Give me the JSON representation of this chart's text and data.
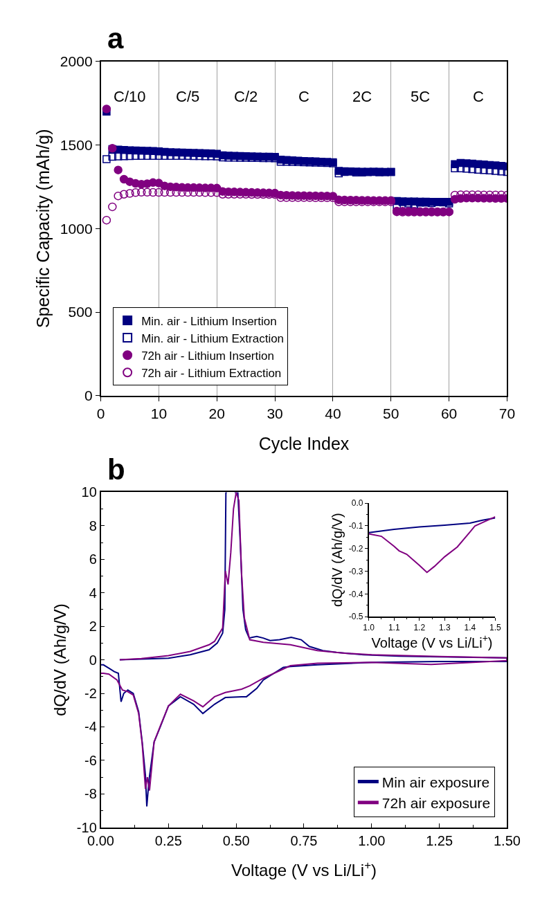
{
  "chart_data": [
    {
      "type": "scatter",
      "title": "a",
      "xlabel": "Cycle Index",
      "ylabel": "Specific Capacity (mAh/g)",
      "x": [
        1,
        2,
        3,
        4,
        5,
        6,
        7,
        8,
        9,
        10,
        11,
        12,
        13,
        14,
        15,
        16,
        17,
        18,
        19,
        20,
        21,
        22,
        23,
        24,
        25,
        26,
        27,
        28,
        29,
        30,
        31,
        32,
        33,
        34,
        35,
        36,
        37,
        38,
        39,
        40,
        41,
        42,
        43,
        44,
        45,
        46,
        47,
        48,
        49,
        50,
        51,
        52,
        53,
        54,
        55,
        56,
        57,
        58,
        59,
        60,
        61,
        62,
        63,
        64,
        65,
        66,
        67,
        68,
        69,
        70
      ],
      "series": [
        {
          "name": "Min. air - Lithium Insertion",
          "color": "#000080",
          "marker": "square",
          "values": [
            1700,
            1475,
            1472,
            1470,
            1468,
            1467,
            1466,
            1465,
            1464,
            1462,
            1458,
            1456,
            1455,
            1454,
            1453,
            1452,
            1451,
            1450,
            1449,
            1447,
            1438,
            1436,
            1435,
            1434,
            1433,
            1432,
            1431,
            1430,
            1429,
            1428,
            1412,
            1410,
            1408,
            1406,
            1404,
            1403,
            1402,
            1400,
            1398,
            1396,
            1345,
            1343,
            1342,
            1341,
            1340,
            1340,
            1339,
            1339,
            1338,
            1338,
            1165,
            1163,
            1162,
            1162,
            1161,
            1161,
            1160,
            1160,
            1160,
            1160,
            1385,
            1392,
            1390,
            1388,
            1385,
            1383,
            1380,
            1378,
            1375,
            1372
          ]
        },
        {
          "name": "Min. air - Lithium Extraction",
          "color": "#000080",
          "marker": "square-open",
          "values": [
            1415,
            1430,
            1432,
            1433,
            1434,
            1435,
            1435,
            1435,
            1435,
            1435,
            1435,
            1435,
            1435,
            1435,
            1435,
            1434,
            1434,
            1433,
            1433,
            1432,
            1425,
            1424,
            1424,
            1423,
            1423,
            1422,
            1422,
            1421,
            1421,
            1420,
            1400,
            1399,
            1398,
            1397,
            1396,
            1395,
            1394,
            1393,
            1392,
            1390,
            1330,
            1338,
            1342,
            1335,
            1335,
            1337,
            1338,
            1336,
            1337,
            1338,
            1140,
            1158,
            1150,
            1145,
            1155,
            1155,
            1152,
            1158,
            1156,
            1150,
            1360,
            1360,
            1358,
            1355,
            1352,
            1350,
            1348,
            1345,
            1342,
            1338
          ]
        },
        {
          "name": "72h air - Lithium Insertion",
          "color": "#800080",
          "marker": "circle",
          "values": [
            1715,
            1480,
            1350,
            1295,
            1280,
            1270,
            1265,
            1268,
            1275,
            1272,
            1255,
            1250,
            1248,
            1246,
            1245,
            1245,
            1244,
            1243,
            1243,
            1242,
            1222,
            1220,
            1219,
            1218,
            1217,
            1216,
            1215,
            1214,
            1213,
            1212,
            1200,
            1199,
            1198,
            1197,
            1197,
            1196,
            1196,
            1195,
            1195,
            1194,
            1172,
            1171,
            1170,
            1170,
            1169,
            1169,
            1168,
            1168,
            1168,
            1168,
            1105,
            1104,
            1103,
            1103,
            1102,
            1102,
            1102,
            1101,
            1101,
            1100,
            1175,
            1180,
            1182,
            1182,
            1182,
            1181,
            1181,
            1180,
            1180,
            1180
          ]
        },
        {
          "name": "72h air - Lithium Extraction",
          "color": "#800080",
          "marker": "circle-open",
          "values": [
            1050,
            1130,
            1195,
            1205,
            1210,
            1215,
            1217,
            1217,
            1216,
            1216,
            1216,
            1216,
            1216,
            1216,
            1216,
            1216,
            1216,
            1215,
            1215,
            1215,
            1205,
            1205,
            1205,
            1205,
            1205,
            1204,
            1204,
            1204,
            1204,
            1204,
            1185,
            1185,
            1185,
            1185,
            1185,
            1185,
            1184,
            1184,
            1184,
            1184,
            1160,
            1160,
            1160,
            1160,
            1160,
            1160,
            1160,
            1160,
            1160,
            1160,
            1100,
            1098,
            1098,
            1098,
            1098,
            1098,
            1098,
            1098,
            1098,
            1100,
            1200,
            1202,
            1202,
            1202,
            1202,
            1201,
            1201,
            1201,
            1201,
            1200
          ]
        }
      ],
      "annotations": [
        "C/10",
        "C/5",
        "C/2",
        "C",
        "2C",
        "5C",
        "C"
      ],
      "xlim": [
        0,
        70
      ],
      "xticks": [
        0,
        10,
        20,
        30,
        40,
        50,
        60,
        70
      ],
      "ylim": [
        0,
        2000
      ],
      "yticks": [
        0,
        500,
        1000,
        1500,
        2000
      ],
      "grid": "x",
      "legend": "bottom left"
    },
    {
      "type": "line",
      "title": "b",
      "xlabel": "Voltage (V vs Li/Li$^{+}$)",
      "ylabel": "dQ/dV (Ah/g/V)",
      "series": [
        {
          "name": "Min air exposure",
          "color": "#000080",
          "x": [
            0.07,
            0.15,
            0.25,
            0.33,
            0.4,
            0.43,
            0.45,
            0.458,
            0.462,
            0.466,
            0.48,
            0.494,
            0.5,
            0.506,
            0.515,
            0.525,
            0.535,
            0.548,
            0.56,
            0.576,
            0.6,
            0.625,
            0.66,
            0.703,
            0.74,
            0.77,
            0.82,
            0.87,
            0.97,
            1.1,
            1.25,
            1.5,
            1.5,
            1.25,
            1.0,
            0.8,
            0.7,
            0.674,
            0.6,
            0.576,
            0.538,
            0.52,
            0.46,
            0.42,
            0.377,
            0.343,
            0.294,
            0.25,
            0.221,
            0.197,
            0.178,
            0.17,
            0.165,
            0.153,
            0.14,
            0.12,
            0.1,
            0.085,
            0.075,
            0.065,
            0.05,
            0.03,
            0.01,
            0.0
          ],
          "values": [
            0.0,
            0.05,
            0.1,
            0.3,
            0.6,
            1.0,
            1.6,
            3.0,
            10,
            10,
            null,
            10,
            10,
            10,
            7.0,
            3.0,
            1.8,
            1.3,
            1.35,
            1.4,
            1.3,
            1.15,
            1.2,
            1.35,
            1.2,
            0.8,
            0.55,
            0.45,
            0.3,
            0.22,
            0.18,
            0.12,
            -0.1,
            -0.1,
            -0.15,
            -0.3,
            -0.4,
            -0.45,
            -1.2,
            -1.7,
            -2.2,
            -2.2,
            -2.25,
            -2.65,
            -3.2,
            -2.65,
            -2.2,
            -2.75,
            -3.95,
            -4.9,
            -7.2,
            -8.75,
            -6.9,
            -4.9,
            -3.1,
            -2.0,
            -1.8,
            -2.0,
            -2.5,
            -0.8,
            -0.7,
            -0.5,
            -0.3,
            -0.3
          ]
        },
        {
          "name": "72h air exposure",
          "color": "#800080",
          "x": [
            0.07,
            0.15,
            0.25,
            0.33,
            0.4,
            0.42,
            0.45,
            0.46,
            0.47,
            0.48,
            0.49,
            0.5,
            0.51,
            0.52,
            0.53,
            0.55,
            0.6,
            0.7,
            0.8,
            0.9,
            1.0,
            1.25,
            1.5,
            1.5,
            1.22,
            1.0,
            0.8,
            0.7,
            0.6,
            0.55,
            0.52,
            0.46,
            0.42,
            0.377,
            0.343,
            0.294,
            0.25,
            0.221,
            0.197,
            0.18,
            0.172,
            0.165,
            0.153,
            0.14,
            0.12,
            0.1,
            0.08,
            0.06,
            0.03,
            0.01,
            0.0
          ],
          "values": [
            0.0,
            0.08,
            0.25,
            0.5,
            0.9,
            1.1,
            1.9,
            5.3,
            4.5,
            6.4,
            9.0,
            10,
            9.5,
            5.1,
            2.5,
            1.2,
            1.05,
            0.9,
            0.55,
            0.4,
            0.3,
            0.2,
            0.12,
            -0.05,
            -0.27,
            -0.15,
            -0.2,
            -0.35,
            -1.1,
            -1.55,
            -1.75,
            -1.95,
            -2.2,
            -2.8,
            -2.45,
            -2.05,
            -2.75,
            -3.9,
            -4.9,
            -7.8,
            -7.0,
            -7.7,
            -5.0,
            -3.2,
            -2.1,
            -1.9,
            -1.8,
            -1.2,
            -0.85,
            -0.8,
            -0.8
          ]
        }
      ],
      "xlim": [
        0,
        1.5
      ],
      "xticks": [
        {
          "value": 0,
          "label": "0.00"
        },
        {
          "value": 0.25,
          "label": "0.25"
        },
        {
          "value": 0.5,
          "label": "0.50"
        },
        {
          "value": 0.75,
          "label": "0.75"
        },
        {
          "value": 1.0,
          "label": "1.00"
        },
        {
          "value": 1.25,
          "label": "1.25"
        },
        {
          "value": 1.5,
          "label": "1.50"
        }
      ],
      "ylim": [
        -10,
        10
      ],
      "yticks": [
        -10,
        -8,
        -6,
        -4,
        -2,
        0,
        2,
        4,
        6,
        8,
        10
      ],
      "legend": "bottom right"
    },
    {
      "type": "line",
      "xlabel": "Voltage (V vs Li/Li$^{+}$)",
      "ylabel": "dQ/dV (Ah/g/V)",
      "series": [
        {
          "color": "#000080",
          "x": [
            1.0,
            1.1,
            1.2,
            1.3,
            1.4,
            1.45,
            1.5
          ],
          "values": [
            -0.13,
            -0.115,
            -0.105,
            -0.097,
            -0.088,
            -0.075,
            -0.065
          ]
        },
        {
          "color": "#800080",
          "x": [
            1.0,
            1.05,
            1.1,
            1.12,
            1.15,
            1.2,
            1.23,
            1.26,
            1.3,
            1.35,
            1.4,
            1.42,
            1.45,
            1.5
          ],
          "values": [
            -0.135,
            -0.146,
            -0.19,
            -0.21,
            -0.225,
            -0.274,
            -0.305,
            -0.278,
            -0.236,
            -0.193,
            -0.127,
            -0.1,
            -0.085,
            -0.06
          ]
        }
      ],
      "xlim": [
        1.0,
        1.5
      ],
      "xticks": [
        {
          "value": 1.0,
          "label": "1.0"
        },
        {
          "value": 1.1,
          "label": "1.1"
        },
        {
          "value": 1.2,
          "label": "1.2"
        },
        {
          "value": 1.3,
          "label": "1.3"
        },
        {
          "value": 1.4,
          "label": "1.4"
        },
        {
          "value": 1.5,
          "label": "1.5"
        }
      ],
      "ylim": [
        -0.5,
        0.0
      ],
      "yticks": [
        {
          "value": -0.5,
          "label": "-0.5"
        },
        {
          "value": -0.4,
          "label": "-0.4"
        },
        {
          "value": -0.3,
          "label": "-0.3"
        },
        {
          "value": -0.2,
          "label": "-0.2"
        },
        {
          "value": -0.1,
          "label": "-0.1"
        },
        {
          "value": 0.0,
          "label": "0.0"
        }
      ]
    }
  ]
}
